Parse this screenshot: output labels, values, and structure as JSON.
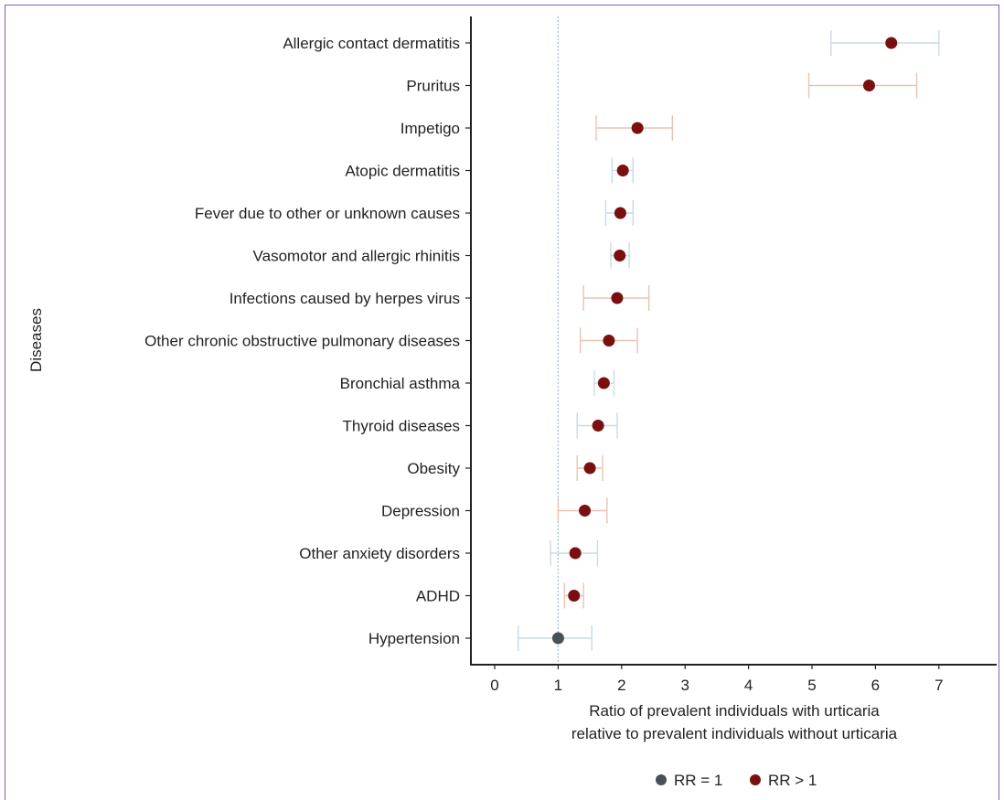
{
  "chart_data": {
    "type": "scatter",
    "subtype": "forest-plot",
    "ylabel": "Diseases",
    "xlabel_lines": [
      "Ratio of prevalent individuals with urticaria",
      "relative to prevalent individuals without urticaria"
    ],
    "xlim": [
      -0.4,
      7.9
    ],
    "xticks": [
      0,
      1,
      2,
      3,
      4,
      5,
      6,
      7
    ],
    "reference_line": 1,
    "colors": {
      "rr_gt_1": "#7a0f0f",
      "rr_eq_1": "#4a5156",
      "ci_light": "#c8dbe8",
      "ci_warm": "#e8c3b3",
      "reference": "#9ec3d6",
      "axis": "#222222"
    },
    "legend": [
      {
        "label": "RR = 1",
        "group": "rr_eq_1"
      },
      {
        "label": "RR > 1",
        "group": "rr_gt_1"
      }
    ],
    "legend_position": "bottom",
    "rows": [
      {
        "label": "Allergic contact dermatitis",
        "rr": 6.25,
        "lower": 5.3,
        "upper": 7.0,
        "group": "rr_gt_1",
        "ci_color": "ci_light"
      },
      {
        "label": "Pruritus",
        "rr": 5.9,
        "lower": 4.95,
        "upper": 6.65,
        "group": "rr_gt_1",
        "ci_color": "ci_warm"
      },
      {
        "label": "Impetigo",
        "rr": 2.25,
        "lower": 1.6,
        "upper": 2.8,
        "group": "rr_gt_1",
        "ci_color": "ci_warm"
      },
      {
        "label": "Atopic dermatitis",
        "rr": 2.02,
        "lower": 1.85,
        "upper": 2.18,
        "group": "rr_gt_1",
        "ci_color": "ci_light"
      },
      {
        "label": "Fever due to other or unknown causes",
        "rr": 1.98,
        "lower": 1.75,
        "upper": 2.18,
        "group": "rr_gt_1",
        "ci_color": "ci_light"
      },
      {
        "label": "Vasomotor and allergic rhinitis",
        "rr": 1.97,
        "lower": 1.83,
        "upper": 2.12,
        "group": "rr_gt_1",
        "ci_color": "ci_light"
      },
      {
        "label": "Infections caused by herpes virus",
        "rr": 1.93,
        "lower": 1.4,
        "upper": 2.43,
        "group": "rr_gt_1",
        "ci_color": "ci_warm"
      },
      {
        "label": "Other chronic obstructive pulmonary diseases",
        "rr": 1.8,
        "lower": 1.35,
        "upper": 2.25,
        "group": "rr_gt_1",
        "ci_color": "ci_warm"
      },
      {
        "label": "Bronchial asthma",
        "rr": 1.72,
        "lower": 1.57,
        "upper": 1.88,
        "group": "rr_gt_1",
        "ci_color": "ci_light"
      },
      {
        "label": "Thyroid diseases",
        "rr": 1.63,
        "lower": 1.3,
        "upper": 1.93,
        "group": "rr_gt_1",
        "ci_color": "ci_light"
      },
      {
        "label": "Obesity",
        "rr": 1.5,
        "lower": 1.3,
        "upper": 1.7,
        "group": "rr_gt_1",
        "ci_color": "ci_warm"
      },
      {
        "label": "Depression",
        "rr": 1.42,
        "lower": 1.0,
        "upper": 1.77,
        "group": "rr_gt_1",
        "ci_color": "ci_warm"
      },
      {
        "label": "Other anxiety disorders",
        "rr": 1.27,
        "lower": 0.88,
        "upper": 1.62,
        "group": "rr_gt_1",
        "ci_color": "ci_light"
      },
      {
        "label": "ADHD",
        "rr": 1.25,
        "lower": 1.1,
        "upper": 1.4,
        "group": "rr_gt_1",
        "ci_color": "ci_warm"
      },
      {
        "label": "Hypertension",
        "rr": 1.0,
        "lower": 0.37,
        "upper": 1.53,
        "group": "rr_eq_1",
        "ci_color": "ci_light"
      }
    ]
  }
}
